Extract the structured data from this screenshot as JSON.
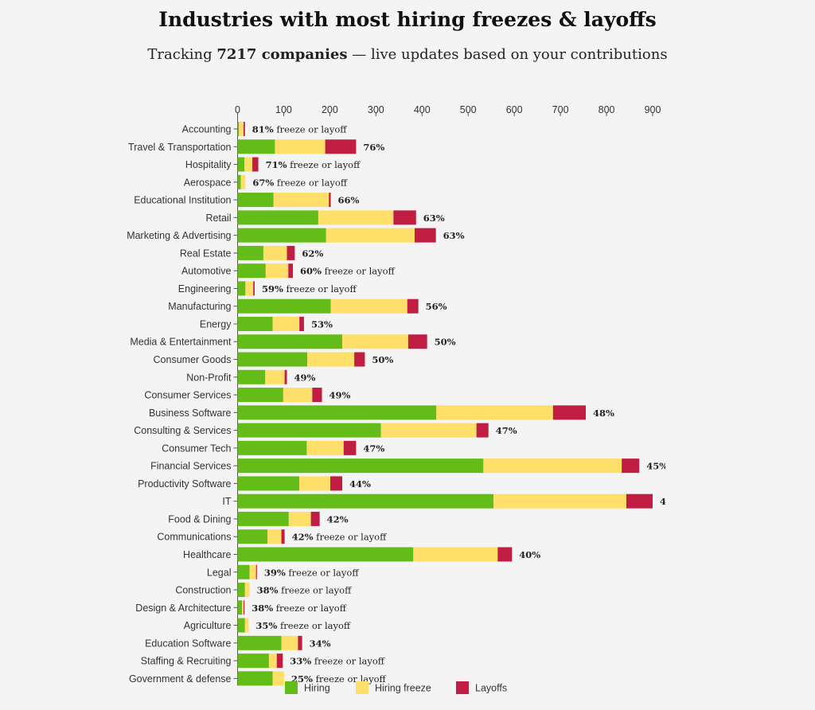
{
  "header": {
    "title": "Industries with most hiring freezes & layoffs",
    "subtitle_prefix": "Tracking ",
    "subtitle_count": "7217 companies",
    "subtitle_suffix": " — live updates based on your contributions"
  },
  "chart_data": {
    "type": "bar",
    "orientation": "horizontal",
    "stacked": true,
    "title": "Industries with most hiring freezes & layoffs",
    "xlim": [
      0,
      900
    ],
    "xticks": [
      0,
      100,
      200,
      300,
      400,
      500,
      600,
      700,
      800,
      900
    ],
    "grid": false,
    "legend_position": "bottom",
    "categories": [
      "Accounting",
      "Travel & Transportation",
      "Hospitality",
      "Aerospace",
      "Educational Institution",
      "Retail",
      "Marketing & Advertising",
      "Real Estate",
      "Automotive",
      "Engineering",
      "Manufacturing",
      "Energy",
      "Media & Entertainment",
      "Consumer Goods",
      "Non-Profit",
      "Consumer Services",
      "Business Software",
      "Consulting & Services",
      "Consumer Tech",
      "Financial Services",
      "Productivity Software",
      "IT",
      "Food & Dining",
      "Communications",
      "Healthcare",
      "Legal",
      "Construction",
      "Design & Architecture",
      "Agriculture",
      "Education Software",
      "Staffing & Recruiting",
      "Government & defense"
    ],
    "series": [
      {
        "name": "Hiring",
        "color": "#63bc17",
        "values": [
          3,
          81,
          15,
          7,
          78,
          175,
          192,
          56,
          61,
          17,
          202,
          76,
          227,
          151,
          60,
          99,
          431,
          311,
          150,
          533,
          134,
          555,
          111,
          65,
          381,
          26,
          16,
          10,
          16,
          95,
          68,
          76
        ]
      },
      {
        "name": "Hiring freeze",
        "color": "#fddf69",
        "values": [
          10,
          109,
          17,
          10,
          120,
          163,
          192,
          51,
          49,
          17,
          166,
          58,
          143,
          102,
          42,
          63,
          253,
          207,
          80,
          300,
          67,
          288,
          48,
          30,
          183,
          14,
          10,
          3,
          8,
          36,
          17,
          25
        ]
      },
      {
        "name": "Layoffs",
        "color": "#c01d43",
        "values": [
          3,
          67,
          13,
          0,
          4,
          49,
          46,
          17,
          10,
          3,
          24,
          10,
          41,
          23,
          5,
          21,
          71,
          26,
          27,
          38,
          26,
          57,
          19,
          7,
          31,
          2,
          0,
          2,
          0,
          9,
          13,
          0
        ]
      }
    ],
    "data_labels": [
      "81% freeze or layoff",
      "76%",
      "71% freeze or layoff",
      "67% freeze or layoff",
      "66%",
      "63%",
      "63%",
      "62%",
      "60% freeze or layoff",
      "59% freeze or layoff",
      "56%",
      "53%",
      "50%",
      "50%",
      "49%",
      "49%",
      "48%",
      "47%",
      "47%",
      "45%",
      "44%",
      "4",
      "42%",
      "42% freeze or layoff",
      "40%",
      "39% freeze or layoff",
      "38% freeze or layoff",
      "38% freeze or layoff",
      "35% freeze or layoff",
      "34%",
      "33% freeze or layoff",
      "25% freeze or layoff"
    ]
  }
}
